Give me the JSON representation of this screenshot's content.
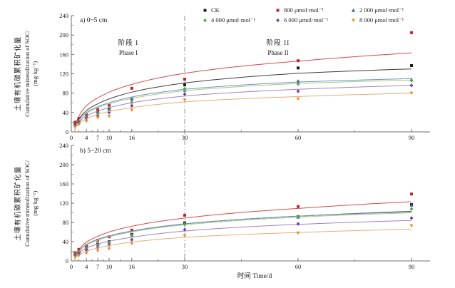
{
  "figure": {
    "panel_a_label": "a) 0~5 cm",
    "panel_b_label": "b) 5~20 cm",
    "y_axis_title_zh": "土壤有机碳累积矿化量",
    "y_axis_title_en": "Cumulative mineralization of SOC/",
    "y_axis_title_unit": "(mg·kg⁻¹)",
    "x_axis_title": "时间 Time/d",
    "phase1_zh": "阶段 I",
    "phase1_en": "Phase I",
    "phase2_zh": "阶段 II",
    "phase2_en": "Phase II"
  },
  "legend": [
    {
      "label": "CK",
      "marker": "square",
      "marker_color": "#1a1a1a"
    },
    {
      "label": "800 μmol·mol⁻¹",
      "marker": "square",
      "marker_color": "#c2262b"
    },
    {
      "label": "2 000 μmol·mol⁻¹",
      "marker": "triangle-up",
      "marker_color": "#3c5fa5"
    },
    {
      "label": "4 000 μmol·mol⁻¹",
      "marker": "diamond",
      "marker_color": "#57a348"
    },
    {
      "label": "6 000 μmol·mol⁻¹",
      "marker": "diamond",
      "marker_color": "#6f42a1"
    },
    {
      "label": "8 000 μmol·mol⁻¹",
      "marker": "triangle-down",
      "marker_color": "#e0913f"
    }
  ],
  "chart_data": {
    "type": "scatter",
    "title": "",
    "xlabel": "时间 Time/d",
    "ylabel": "土壤有机碳累积矿化量 Cumulative mineralization of SOC/(mg·kg⁻¹)",
    "xlim": [
      0,
      95
    ],
    "ylim": [
      0,
      240
    ],
    "x": [
      1,
      2,
      4,
      7,
      10,
      16,
      30,
      60,
      90
    ],
    "x_ticks": [
      0,
      4,
      7,
      10,
      16,
      30,
      60,
      90
    ],
    "x_minor_ticks": [
      2,
      5.5,
      8.5,
      13,
      23,
      45,
      75
    ],
    "y_ticks": [
      0,
      40,
      80,
      120,
      160,
      200,
      240
    ],
    "y_minor_ticks": [
      20,
      60,
      100,
      140,
      180,
      220
    ],
    "grid": false,
    "legend_position": "top-right",
    "phase_divider_x": 30,
    "colors": {
      "axis": "#6e6e6e",
      "divider": "#8a8a8a"
    },
    "series": [
      {
        "label": "CK",
        "marker": "square",
        "marker_color": "#1a1a1a",
        "line_color": "#3d3d3d"
      },
      {
        "label": "800 μmol·mol⁻¹",
        "marker": "square",
        "marker_color": "#c2262b",
        "line_color": "#d44a4a"
      },
      {
        "label": "2 000 μmol·mol⁻¹",
        "marker": "triangle-up",
        "marker_color": "#3c5fa5",
        "line_color": "#7290c5"
      },
      {
        "label": "4 000 μmol·mol⁻¹",
        "marker": "diamond",
        "marker_color": "#57a348",
        "line_color": "#a3cc85"
      },
      {
        "label": "6 000 μmol·mol⁻¹",
        "marker": "diamond",
        "marker_color": "#6f42a1",
        "line_color": "#a183c2"
      },
      {
        "label": "8 000 μmol·mol⁻¹",
        "marker": "triangle-down",
        "marker_color": "#e0913f",
        "line_color": "#ebac73"
      }
    ],
    "panels": [
      {
        "id": "a",
        "label": "a) 0~5 cm",
        "depth": "0~5 cm",
        "observed": [
          [
            17,
            25,
            33,
            43,
            48,
            68,
            97,
            132,
            137
          ],
          [
            20,
            28,
            36,
            46,
            55,
            90,
            109,
            147,
            205
          ],
          [
            15,
            23,
            31,
            42,
            47,
            68,
            86,
            105,
            108
          ],
          [
            14,
            21,
            30,
            38,
            44,
            61,
            89,
            99,
            106
          ],
          [
            13,
            19,
            28,
            34,
            40,
            54,
            78,
            84,
            96
          ],
          [
            10,
            15,
            22,
            29,
            32,
            45,
            66,
            68,
            80
          ]
        ],
        "fitted": [
          [
            10,
            26,
            44,
            58,
            68,
            82,
            101,
            121,
            130
          ],
          [
            12,
            32,
            54,
            70,
            82,
            98,
            121,
            146,
            163
          ],
          [
            9,
            24,
            40,
            52,
            60,
            72,
            88,
            103,
            110
          ],
          [
            9,
            23,
            38,
            50,
            58,
            69,
            85,
            100,
            107
          ],
          [
            8,
            20,
            33,
            43,
            50,
            60,
            74,
            88,
            96
          ],
          [
            7,
            17,
            27,
            36,
            42,
            50,
            62,
            73,
            80
          ]
        ]
      },
      {
        "id": "b",
        "label": "b) 5~20 cm",
        "depth": "5~20 cm",
        "observed": [
          [
            15,
            20,
            28,
            35,
            40,
            55,
            79,
            92,
            117
          ],
          [
            17,
            24,
            32,
            43,
            50,
            64,
            95,
            113,
            139
          ],
          [
            14,
            19,
            27,
            34,
            39,
            54,
            78,
            91,
            116
          ],
          [
            13,
            18,
            26,
            33,
            38,
            53,
            76,
            92,
            108
          ],
          [
            11,
            15,
            22,
            28,
            33,
            44,
            65,
            77,
            89
          ],
          [
            8,
            11,
            16,
            21,
            25,
            36,
            52,
            58,
            73
          ]
        ],
        "fitted": [
          [
            8,
            20,
            34,
            45,
            52,
            62,
            77,
            93,
            103
          ],
          [
            9,
            23,
            39,
            51,
            60,
            72,
            89,
            109,
            123
          ],
          [
            8,
            20,
            34,
            45,
            52,
            62,
            77,
            93,
            102
          ],
          [
            8,
            19,
            33,
            43,
            50,
            60,
            75,
            91,
            100
          ],
          [
            6,
            16,
            27,
            35,
            41,
            49,
            62,
            76,
            84
          ],
          [
            5,
            12,
            20,
            27,
            32,
            39,
            49,
            59,
            66
          ]
        ]
      }
    ]
  }
}
